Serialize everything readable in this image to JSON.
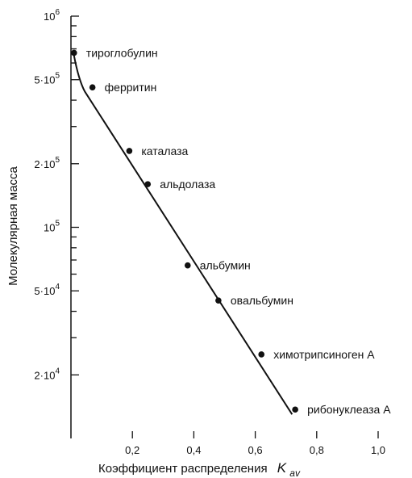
{
  "chart_data": {
    "type": "scatter",
    "title": "",
    "xlabel": "Коэффициент распределения",
    "xlabel_symbol": "K",
    "xlabel_subscript": "av",
    "ylabel": "Молекулярная масса",
    "y_scale": "log",
    "xlim": [
      0,
      1.0
    ],
    "ylim": [
      10000,
      1000000
    ],
    "grid": false,
    "x_ticks": [
      {
        "value": 0.2,
        "label": "0,2"
      },
      {
        "value": 0.4,
        "label": "0,4"
      },
      {
        "value": 0.6,
        "label": "0,6"
      },
      {
        "value": 0.8,
        "label": "0,8"
      },
      {
        "value": 1.0,
        "label": "1,0"
      }
    ],
    "y_tick_labels": [
      {
        "value": 1000000,
        "base": "10",
        "exp": "6"
      },
      {
        "value": 500000,
        "base": "5·10",
        "exp": "5"
      },
      {
        "value": 200000,
        "base": "2·10",
        "exp": "5"
      },
      {
        "value": 100000,
        "base": "10",
        "exp": "5"
      },
      {
        "value": 50000,
        "base": "5·10",
        "exp": "4"
      },
      {
        "value": 20000,
        "base": "2·10",
        "exp": "4"
      }
    ],
    "y_minor_ticks": [
      900000,
      800000,
      700000,
      600000,
      400000,
      300000,
      90000,
      80000,
      70000,
      60000,
      40000,
      30000
    ],
    "points": [
      {
        "x": 0.01,
        "y": 670000,
        "label": "тироглобулин"
      },
      {
        "x": 0.07,
        "y": 460000,
        "label": "ферритин"
      },
      {
        "x": 0.19,
        "y": 230000,
        "label": "каталаза"
      },
      {
        "x": 0.25,
        "y": 160000,
        "label": "альдолаза"
      },
      {
        "x": 0.38,
        "y": 66000,
        "label": "альбумин"
      },
      {
        "x": 0.48,
        "y": 45000,
        "label": "овальбумин"
      },
      {
        "x": 0.62,
        "y": 25000,
        "label": "химотрипсиноген А"
      },
      {
        "x": 0.73,
        "y": 13700,
        "label": "рибонуклеаза А"
      }
    ],
    "fit_line": [
      {
        "x": 0.01,
        "y": 650000
      },
      {
        "x": 0.025,
        "y": 500000
      },
      {
        "x": 0.045,
        "y": 440000
      },
      {
        "x": 0.72,
        "y": 13000
      }
    ]
  }
}
